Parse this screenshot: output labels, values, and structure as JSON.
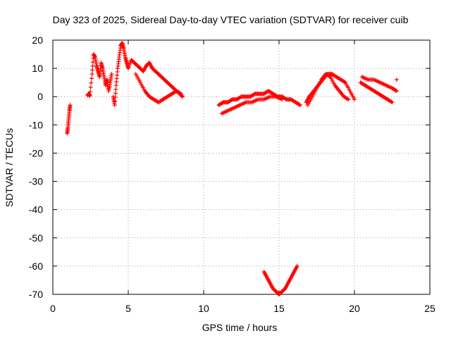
{
  "chart_data": {
    "type": "scatter",
    "title": "Day 323 of 2025, Sidereal Day-to-day VTEC variation (SDTVAR) for receiver cuib",
    "xlabel": "GPS time / hours",
    "ylabel": "SDTVAR / TECUs",
    "xlim": [
      0,
      25
    ],
    "ylim": [
      -70,
      20
    ],
    "xticks": [
      0,
      5,
      10,
      15,
      20,
      25
    ],
    "yticks": [
      -70,
      -60,
      -50,
      -40,
      -30,
      -20,
      -10,
      0,
      10,
      20
    ],
    "xtick_labels": [
      "0",
      "5",
      "10",
      "15",
      "20",
      "25"
    ],
    "ytick_labels": [
      "-70",
      "-60",
      "-50",
      "-40",
      "-30",
      "-20",
      "-10",
      "0",
      "10",
      "20"
    ],
    "grid": true,
    "marker": "plus",
    "color": "#ff0000",
    "series": [
      {
        "name": "SDTVAR",
        "x": [
          0.95,
          1.0,
          1.05,
          1.1,
          1.15,
          2.3,
          2.4,
          2.45,
          2.6,
          2.7,
          2.8,
          2.9,
          3.0,
          3.1,
          3.2,
          3.3,
          3.4,
          3.5,
          3.6,
          3.7,
          3.8,
          3.9,
          4.0,
          4.1,
          4.2,
          4.3,
          4.4,
          4.5,
          4.6,
          4.7,
          4.8,
          4.9,
          5.0,
          5.2,
          5.4,
          5.6,
          5.8,
          6.0,
          6.2,
          6.4,
          6.6,
          6.8,
          7.0,
          7.2,
          7.4,
          7.6,
          7.8,
          8.0,
          8.2,
          8.4,
          8.6,
          5.5,
          5.8,
          6.1,
          6.4,
          6.7,
          7.0,
          7.3,
          7.6,
          7.9,
          8.2,
          8.5,
          11.0,
          11.3,
          11.6,
          11.9,
          12.2,
          12.5,
          12.8,
          13.1,
          13.4,
          13.7,
          14.0,
          14.3,
          14.6,
          14.9,
          15.2,
          15.5,
          15.8,
          16.1,
          16.4,
          11.2,
          11.6,
          12.0,
          12.4,
          12.8,
          13.2,
          13.6,
          14.0,
          14.4,
          14.8,
          15.2,
          14.0,
          14.2,
          14.4,
          14.6,
          14.8,
          15.0,
          15.2,
          15.4,
          15.6,
          15.8,
          16.0,
          16.2,
          16.8,
          17.0,
          17.3,
          17.6,
          17.9,
          18.2,
          18.5,
          18.8,
          19.1,
          19.4,
          19.7,
          20.0,
          16.9,
          17.2,
          17.5,
          17.8,
          18.1,
          18.4,
          18.7,
          19.0,
          19.3,
          19.6,
          20.4,
          20.7,
          21.0,
          21.3,
          21.6,
          21.9,
          22.2,
          22.5,
          22.8,
          20.5,
          20.9,
          21.3,
          21.7,
          22.1,
          22.5,
          22.8
        ],
        "y": [
          -13,
          -11,
          -8,
          -5,
          -3,
          0.5,
          1,
          0.2,
          8,
          15,
          14,
          11,
          9,
          7,
          12,
          10,
          7,
          4,
          6,
          2,
          5,
          8,
          0,
          -3,
          4,
          10,
          14,
          18,
          19,
          17,
          14,
          12,
          10,
          13,
          12,
          11,
          10,
          9,
          11,
          12,
          10,
          9,
          8,
          7,
          6,
          5,
          4,
          3,
          2,
          1,
          0,
          8,
          5,
          2,
          0,
          -1,
          -2,
          -1,
          0,
          1,
          2,
          1,
          -3,
          -2,
          -2,
          -1,
          -1,
          0,
          0,
          0,
          1,
          1,
          1,
          2,
          1,
          0,
          0,
          -1,
          -1,
          -2,
          -3,
          -6,
          -5,
          -4,
          -3,
          -2,
          -2,
          -1,
          -1,
          0,
          0,
          -1,
          -62,
          -64,
          -66,
          -68,
          -69,
          -70,
          -69,
          -68,
          -66,
          -64,
          -62,
          -60,
          -2,
          0,
          2,
          4,
          6,
          8,
          8,
          7,
          6,
          5,
          2,
          -1,
          -3,
          0,
          3,
          6,
          8,
          7,
          4,
          2,
          0,
          -1,
          5,
          4,
          3,
          2,
          1,
          0,
          -1,
          -2,
          6,
          7,
          6,
          6,
          5,
          4,
          3,
          2
        ]
      }
    ]
  }
}
